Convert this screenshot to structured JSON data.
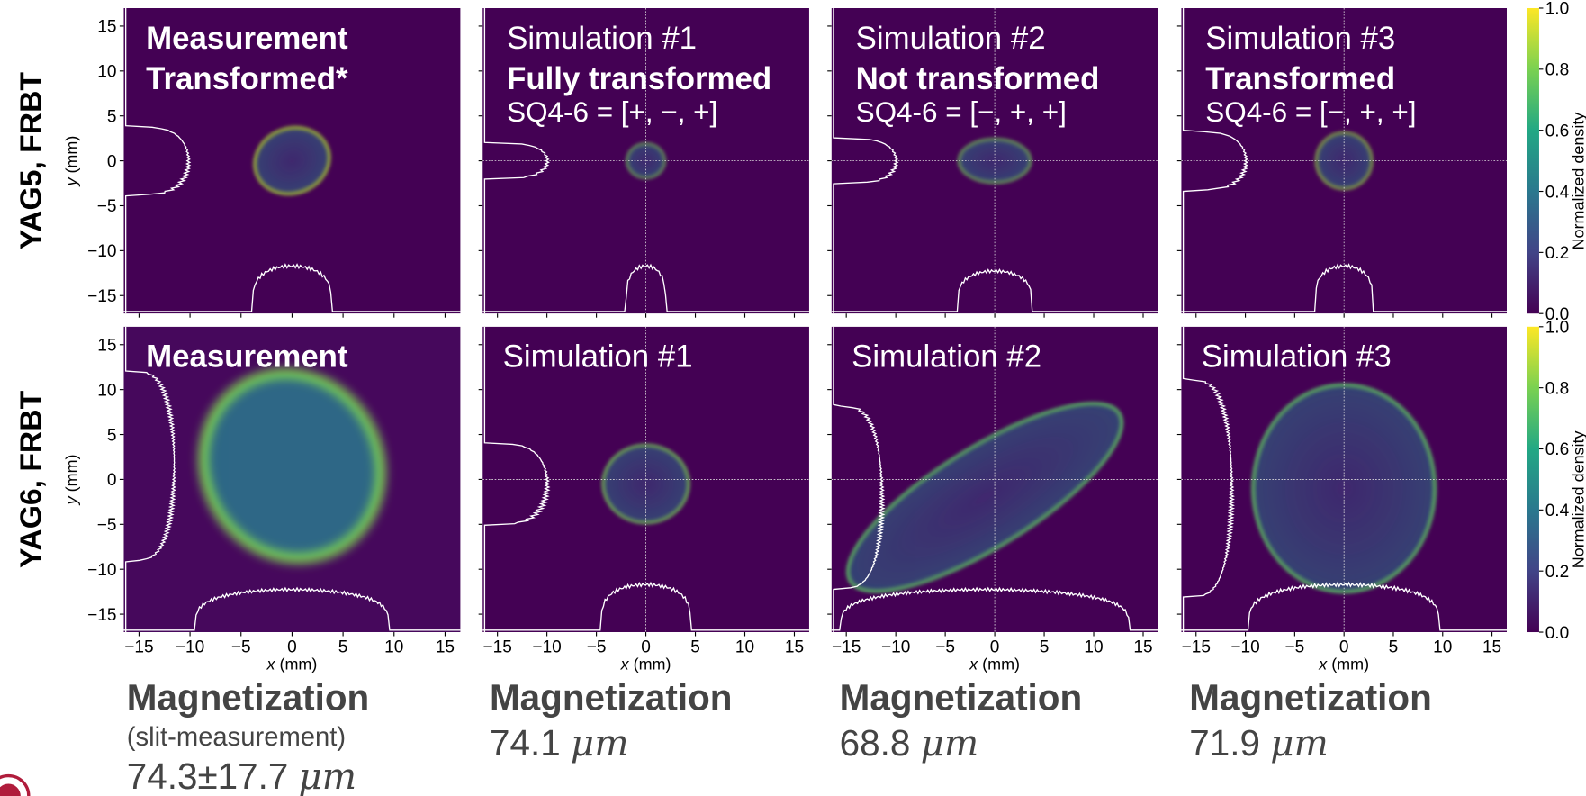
{
  "row_labels": [
    "YAG5, FRBT",
    "YAG6, FRBT"
  ],
  "panels": [
    [
      {
        "lines": [
          "Measurement",
          "Transformed*"
        ]
      },
      {
        "lines": [
          "Simulation #1",
          "Fully transformed",
          "SQ4-6 = [+, −, +]"
        ]
      },
      {
        "lines": [
          "Simulation #2",
          "Not transformed",
          "SQ4-6 = [−, +, +]"
        ]
      },
      {
        "lines": [
          "Simulation #3",
          "Transformed",
          "SQ4-6 = [−, +, +]"
        ]
      }
    ],
    [
      {
        "lines": [
          "Measurement"
        ]
      },
      {
        "lines": [
          "Simulation #1"
        ]
      },
      {
        "lines": [
          "Simulation #2"
        ]
      },
      {
        "lines": [
          "Simulation #3"
        ]
      }
    ]
  ],
  "axes": {
    "x_var": "x",
    "y_var": "y",
    "unit": "(mm)",
    "xticks": [
      {
        "value": -15,
        "label": "−15"
      },
      {
        "value": -10,
        "label": "−10"
      },
      {
        "value": -5,
        "label": "−5"
      },
      0,
      5,
      10,
      15
    ],
    "yticks": [
      15,
      10,
      5,
      0,
      {
        "value": -5,
        "label": "−5"
      },
      {
        "value": -10,
        "label": "−10"
      },
      {
        "value": -15,
        "label": "−15"
      }
    ]
  },
  "colorbar": {
    "label": "Normalized density",
    "ticks": [
      {
        "value": 1,
        "label": "1.0"
      },
      {
        "value": 0.8,
        "label": "0.8"
      },
      {
        "value": 0.6,
        "label": "0.6"
      },
      {
        "value": 0.4,
        "label": "0.4"
      },
      {
        "value": 0.2,
        "label": "0.2"
      },
      {
        "value": 0,
        "label": "0.0"
      }
    ]
  },
  "magnetization": [
    {
      "title": "Magnetization",
      "note": "(slit-measurement)",
      "value": "74.3±17.7",
      "unit": "μm"
    },
    {
      "title": "Magnetization",
      "value": "74.1",
      "unit": "μm"
    },
    {
      "title": "Magnetization",
      "value": "68.8",
      "unit": "μm"
    },
    {
      "title": "Magnetization",
      "value": "71.9",
      "unit": "μm"
    }
  ]
}
